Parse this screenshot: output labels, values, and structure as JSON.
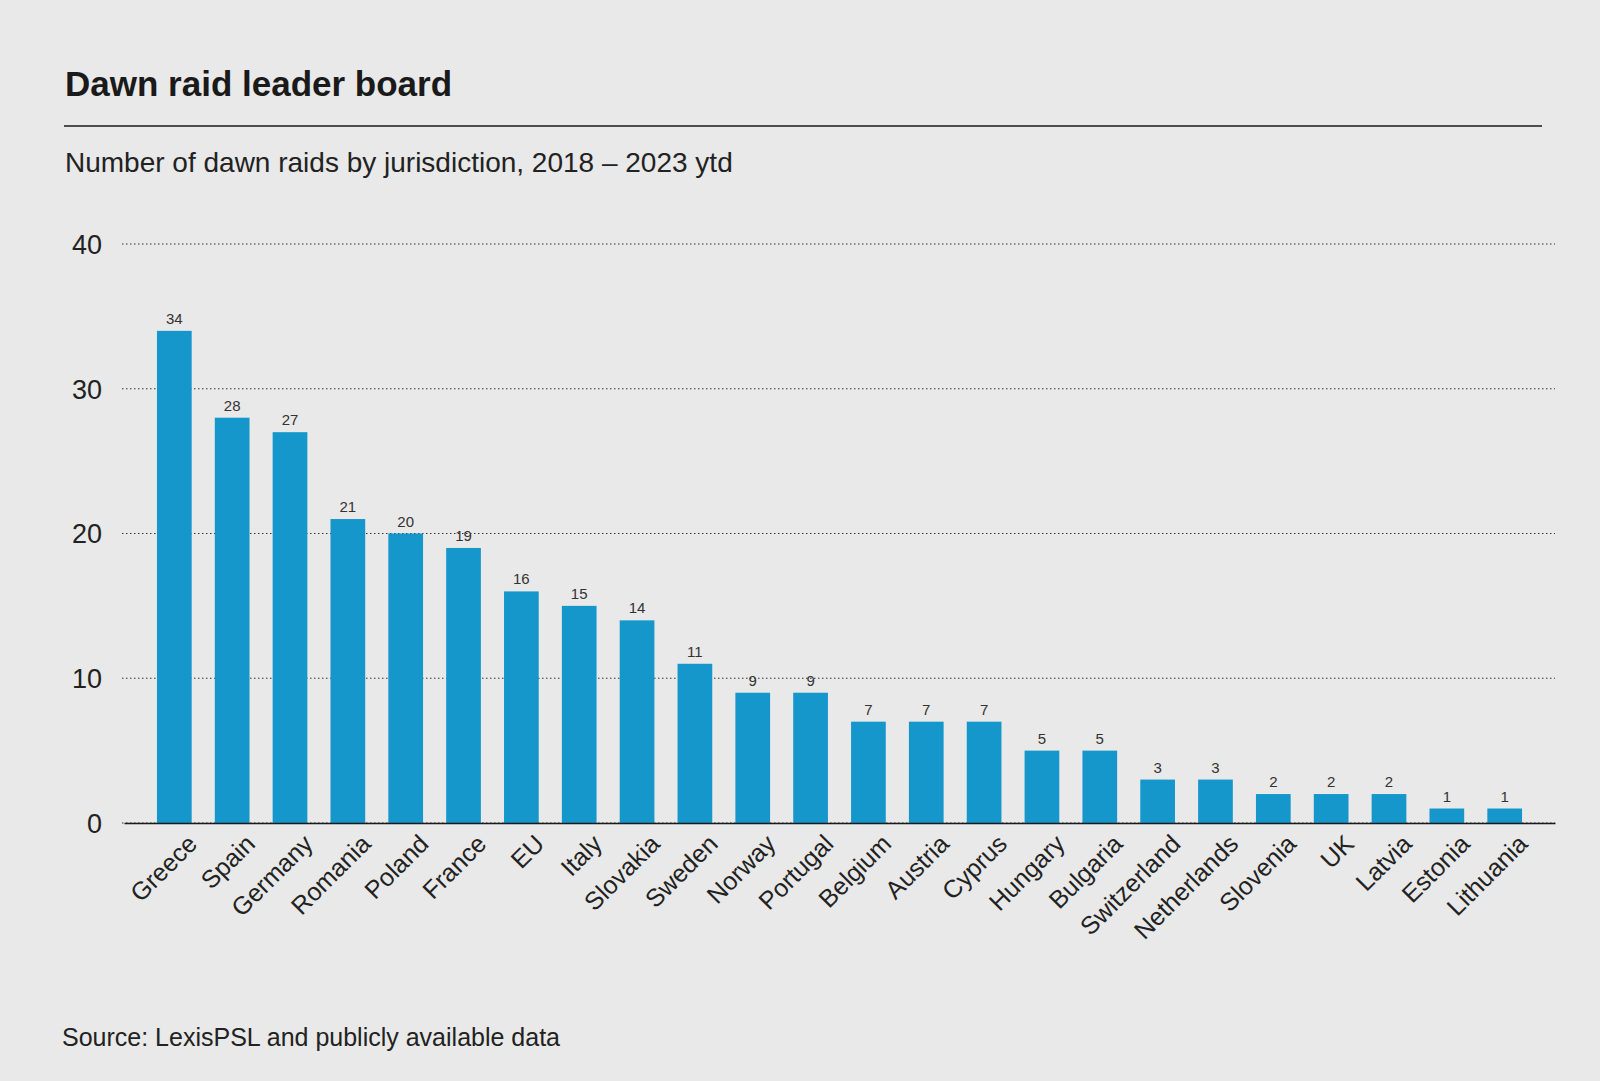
{
  "chart_data": {
    "type": "bar",
    "title": "Dawn raid leader board",
    "subtitle": "Number of dawn raids by jurisdiction, 2018 – 2023 ytd",
    "source": "Source: LexisPSL and publicly available data",
    "categories": [
      "Greece",
      "Spain",
      "Germany",
      "Romania",
      "Poland",
      "France",
      "EU",
      "Italy",
      "Slovakia",
      "Sweden",
      "Norway",
      "Portugal",
      "Belgium",
      "Austria",
      "Cyprus",
      "Hungary",
      "Bulgaria",
      "Switzerland",
      "Netherlands",
      "Slovenia",
      "UK",
      "Latvia",
      "Estonia",
      "Lithuania"
    ],
    "values": [
      34,
      28,
      27,
      21,
      20,
      19,
      16,
      15,
      14,
      11,
      9,
      9,
      7,
      7,
      7,
      5,
      5,
      3,
      3,
      2,
      2,
      2,
      1,
      1
    ],
    "color": "#1597cc",
    "ylim": [
      0,
      40
    ],
    "yticks": [
      0,
      10,
      20,
      30,
      40
    ],
    "grid": true,
    "data_labels": true
  }
}
